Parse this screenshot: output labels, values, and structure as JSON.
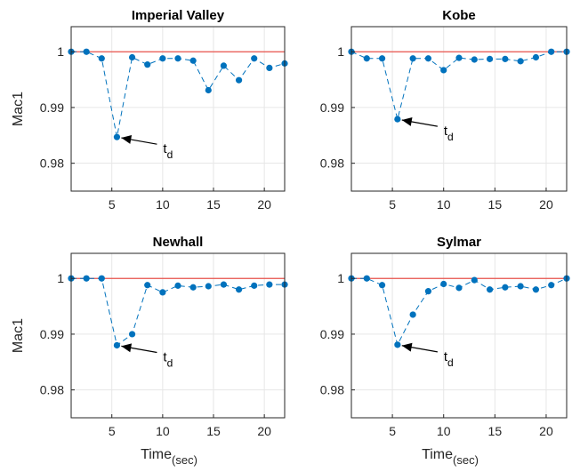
{
  "chart_data": [
    {
      "type": "scatter",
      "title": "Imperial Valley",
      "ylabel": "Mac1",
      "xlabel": "",
      "xlim": [
        1,
        22
      ],
      "ylim": [
        0.975,
        1.0045
      ],
      "xticks": [
        5,
        10,
        15,
        20
      ],
      "yticks": [
        0.98,
        0.99,
        1
      ],
      "ytick_labels": [
        "0.98",
        "0.99",
        "1"
      ],
      "grid": true,
      "reference_line": 1,
      "series": [
        {
          "x": [
            1,
            2.5,
            4,
            5.5,
            7,
            8.5,
            10,
            11.5,
            13,
            14.5,
            16,
            17.5,
            19,
            20.5,
            22
          ],
          "y": [
            1.0,
            1.0,
            0.9988,
            0.9847,
            0.999,
            0.9977,
            0.9988,
            0.9988,
            0.9984,
            0.9931,
            0.9975,
            0.9949,
            0.9988,
            0.9971,
            0.9979
          ]
        }
      ],
      "annotation": {
        "text": "t",
        "subscript": "d",
        "x": 5.5,
        "y": 0.9847
      }
    },
    {
      "type": "scatter",
      "title": "Kobe",
      "ylabel": "",
      "xlabel": "",
      "xlim": [
        1,
        22
      ],
      "ylim": [
        0.975,
        1.0045
      ],
      "xticks": [
        5,
        10,
        15,
        20
      ],
      "yticks": [
        0.98,
        0.99,
        1
      ],
      "ytick_labels": [
        "0.98",
        "0.99",
        "1"
      ],
      "grid": true,
      "reference_line": 1,
      "series": [
        {
          "x": [
            1,
            2.5,
            4,
            5.5,
            7,
            8.5,
            10,
            11.5,
            13,
            14.5,
            16,
            17.5,
            19,
            20.5,
            22
          ],
          "y": [
            1.0,
            0.9988,
            0.9988,
            0.9879,
            0.9988,
            0.9988,
            0.9967,
            0.9989,
            0.9986,
            0.9987,
            0.9987,
            0.9983,
            0.999,
            1.0,
            1.0
          ]
        }
      ],
      "annotation": {
        "text": "t",
        "subscript": "d",
        "x": 5.5,
        "y": 0.9879
      }
    },
    {
      "type": "scatter",
      "title": "Newhall",
      "ylabel": "Mac1",
      "xlabel": "Time",
      "xlabel_sub": "(sec)",
      "xlim": [
        1,
        22
      ],
      "ylim": [
        0.975,
        1.0045
      ],
      "xticks": [
        5,
        10,
        15,
        20
      ],
      "yticks": [
        0.98,
        0.99,
        1
      ],
      "ytick_labels": [
        "0.98",
        "0.99",
        "1"
      ],
      "grid": true,
      "reference_line": 1,
      "series": [
        {
          "x": [
            1,
            2.5,
            4,
            5.5,
            7,
            8.5,
            10,
            11.5,
            13,
            14.5,
            16,
            17.5,
            19,
            20.5,
            22
          ],
          "y": [
            1.0,
            1.0,
            1.0,
            0.988,
            0.99,
            0.9988,
            0.9975,
            0.9987,
            0.9984,
            0.9986,
            0.9989,
            0.998,
            0.9987,
            0.9989,
            0.9989
          ]
        }
      ],
      "annotation": {
        "text": "t",
        "subscript": "d",
        "x": 5.5,
        "y": 0.988
      }
    },
    {
      "type": "scatter",
      "title": "Sylmar",
      "ylabel": "",
      "xlabel": "Time",
      "xlabel_sub": "(sec)",
      "xlim": [
        1,
        22
      ],
      "ylim": [
        0.975,
        1.0045
      ],
      "xticks": [
        5,
        10,
        15,
        20
      ],
      "yticks": [
        0.98,
        0.99,
        1
      ],
      "ytick_labels": [
        "0.98",
        "0.99",
        "1"
      ],
      "grid": true,
      "reference_line": 1,
      "series": [
        {
          "x": [
            1,
            2.5,
            4,
            5.5,
            7,
            8.5,
            10,
            11.5,
            13,
            14.5,
            16,
            17.5,
            19,
            20.5,
            22
          ],
          "y": [
            1.0,
            1.0,
            0.9988,
            0.9881,
            0.9935,
            0.9977,
            0.999,
            0.9983,
            0.9997,
            0.998,
            0.9984,
            0.9986,
            0.998,
            0.9988,
            1.0
          ]
        }
      ],
      "annotation": {
        "text": "t",
        "subscript": "d",
        "x": 5.5,
        "y": 0.9881
      }
    }
  ],
  "colors": {
    "marker": "#0072BD",
    "reference_line": "#E8534C",
    "arrow": "#000000"
  }
}
